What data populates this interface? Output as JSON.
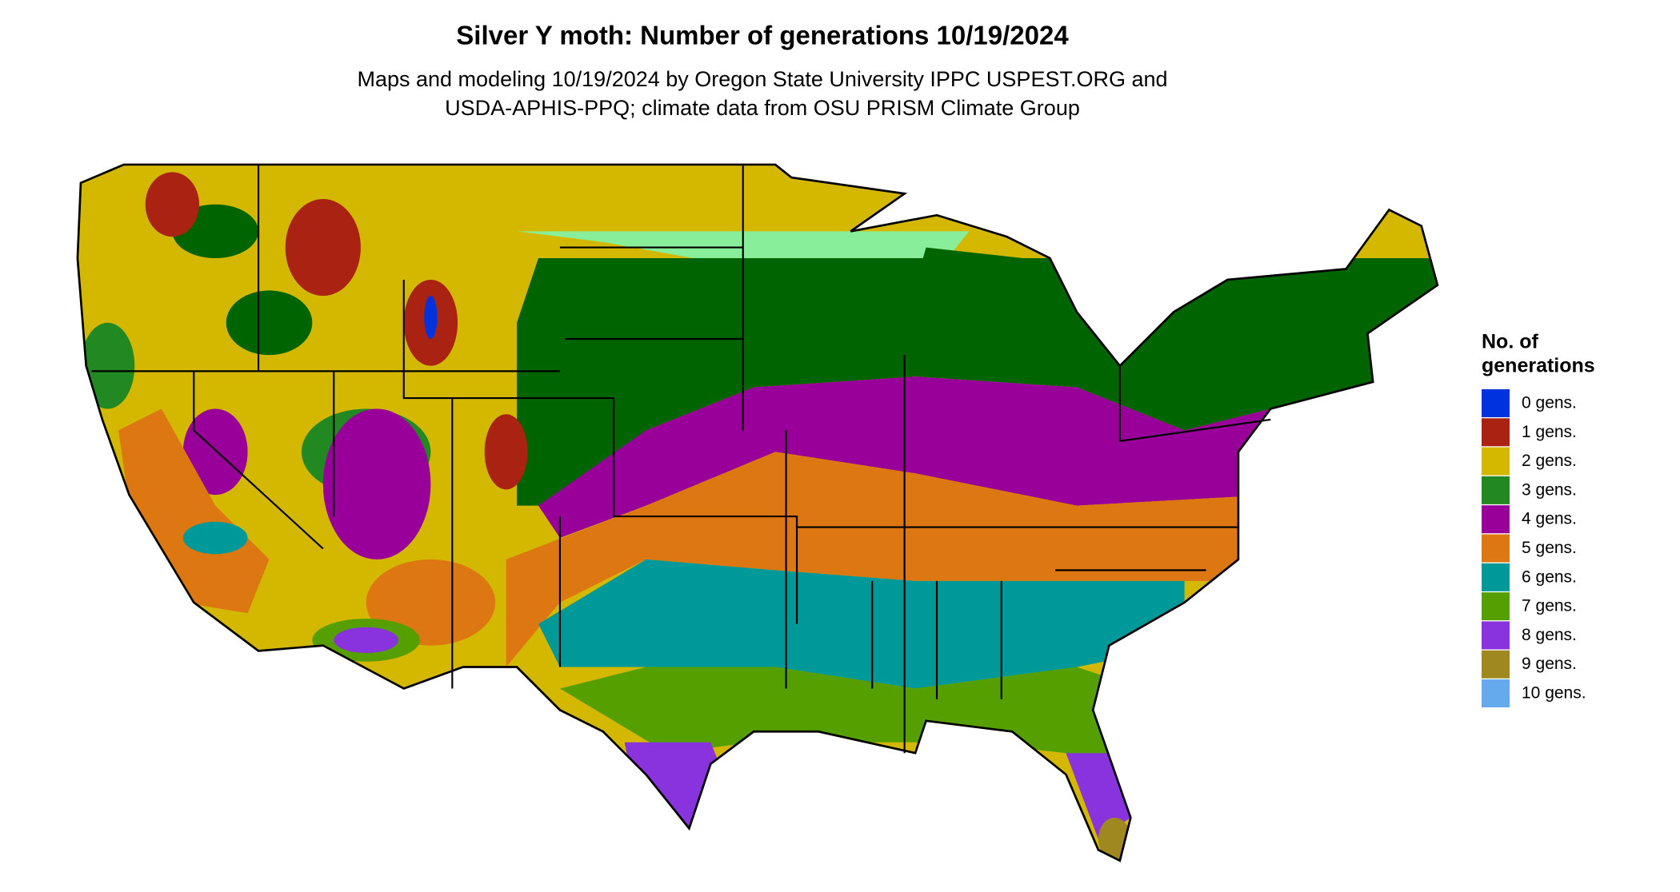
{
  "title": "Silver Y moth: Number of generations 10/19/2024",
  "subtitle": [
    "Maps and modeling 10/19/2024 by Oregon State University IPPC USPEST.ORG and",
    "USDA-APHIS-PPQ; climate data from OSU PRISM Climate Group"
  ],
  "legend": {
    "title": [
      "No. of",
      "generations"
    ],
    "items": [
      {
        "label": "0 gens.",
        "color": "#0033dd"
      },
      {
        "label": "1 gens.",
        "color": "#aa2211"
      },
      {
        "label": "2 gens.",
        "color": "#d4b800"
      },
      {
        "label": "3 gens.",
        "color": "#228822"
      },
      {
        "label": "4 gens.",
        "color": "#990099"
      },
      {
        "label": "5 gens.",
        "color": "#dd7711"
      },
      {
        "label": "6 gens.",
        "color": "#009999"
      },
      {
        "label": "7 gens.",
        "color": "#55a000"
      },
      {
        "label": "8 gens.",
        "color": "#8833dd"
      },
      {
        "label": "9 gens.",
        "color": "#a08820"
      },
      {
        "label": "10 gens.",
        "color": "#66aaee"
      }
    ]
  }
}
